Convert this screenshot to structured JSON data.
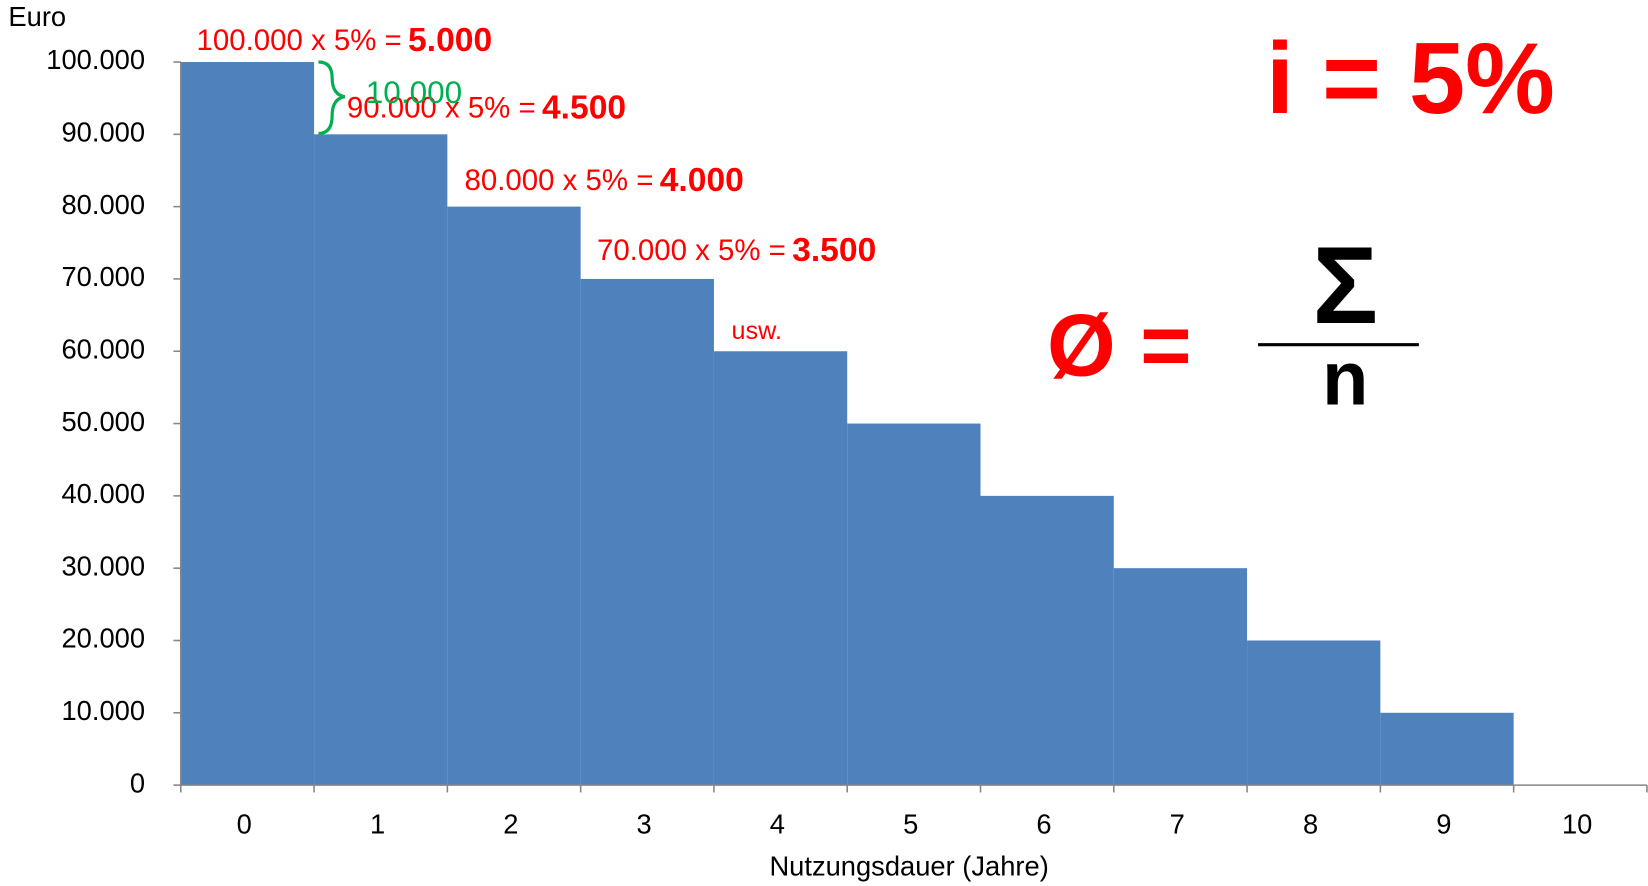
{
  "chart_data": {
    "type": "bar",
    "y_axis_label": "Euro",
    "x_axis_label": "Nutzungsdauer (Jahre)",
    "categories": [
      "0",
      "1",
      "2",
      "3",
      "4",
      "5",
      "6",
      "7",
      "8",
      "9",
      "10"
    ],
    "values": [
      100000,
      90000,
      80000,
      70000,
      60000,
      50000,
      40000,
      30000,
      20000,
      10000,
      0
    ],
    "color": "#4f81bd",
    "ylim": [
      0,
      100000
    ],
    "yticks": [
      0,
      {
        "value": 10000,
        "label": "10.000"
      },
      {
        "value": 20000,
        "label": "20.000"
      },
      {
        "value": 30000,
        "label": "30.000"
      },
      {
        "value": 40000,
        "label": "40.000"
      },
      {
        "value": 50000,
        "label": "50.000"
      },
      {
        "value": 60000,
        "label": "60.000"
      },
      {
        "value": 70000,
        "label": "70.000"
      },
      {
        "value": 80000,
        "label": "80.000"
      },
      {
        "value": 90000,
        "label": "90.000"
      },
      {
        "value": 100000,
        "label": "100.000"
      }
    ],
    "annotations": [
      {
        "text": "100.000  x  5%  =",
        "result": "5.000"
      },
      {
        "text": "90.000  x  5%  =",
        "result": "4.500"
      },
      {
        "text": "80.000  x  5%  =",
        "result": "4.000"
      },
      {
        "text": "70.000  x  5%  =",
        "result": "3.500"
      },
      {
        "text": "usw."
      }
    ],
    "brace_label": "10.000",
    "formula": {
      "rate": "i = 5%",
      "average": "Ø =",
      "numerator": "Σ",
      "denominator": "n"
    }
  }
}
